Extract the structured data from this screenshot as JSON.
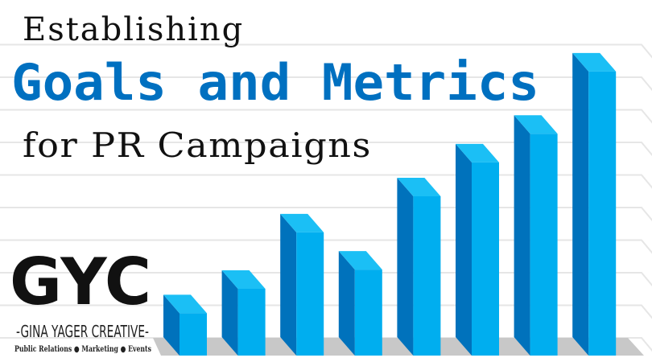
{
  "title": {
    "line1": "Establishing",
    "line2": "Goals and Metrics",
    "line3": "for PR Campaigns"
  },
  "logo": {
    "mark": "GYC",
    "name": "-Gina Yager Creative-",
    "tagline": "Public Relations ● Marketing ● Events"
  },
  "colors": {
    "accent_title": "#0070c0",
    "bar_front": "#00aeef",
    "bar_top": "#1bbff5",
    "bar_side": "#0072bc",
    "floor": "#c8c8c8",
    "grid": "#e6e6e6"
  },
  "chart_data": {
    "type": "bar",
    "style": "3d-column",
    "values": [
      1.3,
      2.05,
      3.78,
      2.64,
      4.89,
      5.93,
      6.81,
      8.72
    ],
    "grid": true,
    "axes_labels_shown": false
  }
}
